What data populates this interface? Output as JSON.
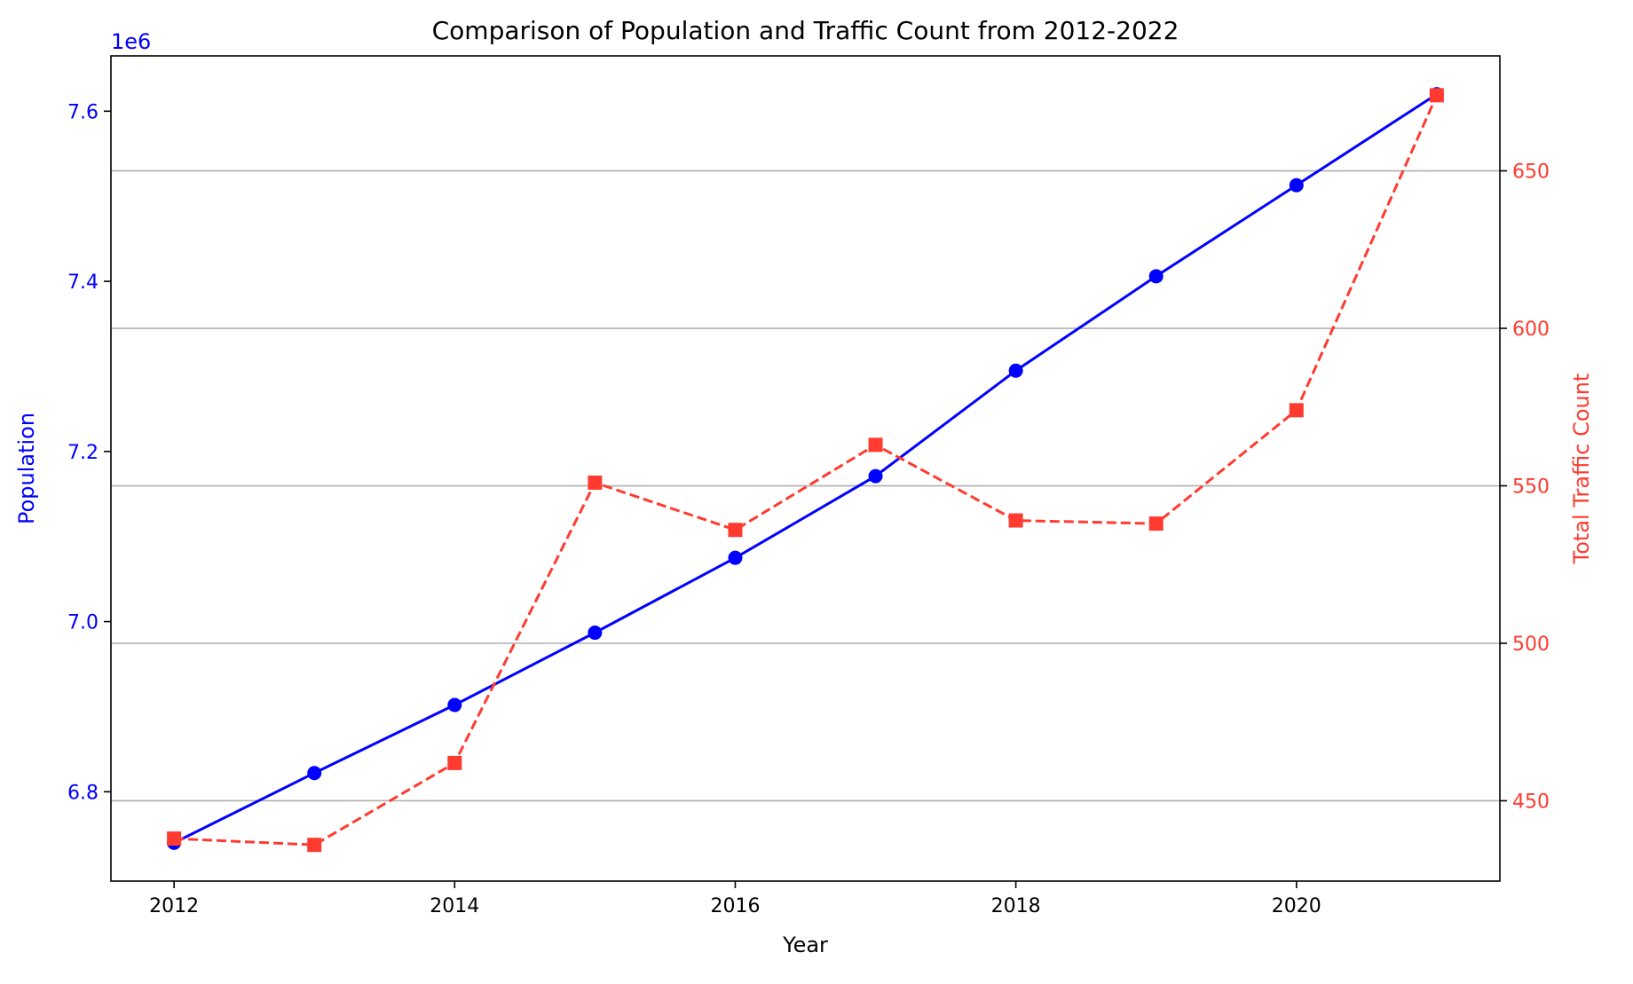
{
  "chart_data": {
    "type": "line",
    "title": "Comparison of Population and Traffic Count from 2012-2022",
    "xlabel": "Year",
    "x_ticks": [
      2012,
      2014,
      2016,
      2018,
      2020
    ],
    "xlim": [
      2011.55,
      2021.45
    ],
    "x": [
      2012,
      2013,
      2014,
      2015,
      2016,
      2017,
      2018,
      2019,
      2020,
      2021
    ],
    "grid": "horizontal lines at right-axis ticks",
    "series": [
      {
        "name": "Population",
        "axis": "left",
        "color": "#0000ff",
        "line_style": "solid",
        "marker": "circle",
        "values": [
          6740000,
          6822000,
          6902000,
          6987000,
          7075000,
          7171000,
          7295000,
          7406000,
          7513000,
          7620000
        ]
      },
      {
        "name": "Total Traffic Count",
        "axis": "right",
        "color": "#ff3b2f",
        "line_style": "dashed",
        "marker": "square",
        "values": [
          438,
          436,
          462,
          551,
          536,
          563,
          539,
          538,
          574,
          674
        ]
      }
    ],
    "y_left": {
      "label": "Population",
      "offset_text": "1e6",
      "scale": 1000000,
      "color": "#0000ff",
      "ylim": [
        6.695,
        7.665
      ],
      "ticks": [
        "6.8",
        "7.0",
        "7.2",
        "7.4",
        "7.6"
      ],
      "tick_values": [
        6.8,
        7.0,
        7.2,
        7.4,
        7.6
      ]
    },
    "y_right": {
      "label": "Total Traffic Count",
      "color": "#ff3b2f",
      "ylim": [
        424.5,
        686.5
      ],
      "ticks": [
        "450",
        "500",
        "550",
        "600",
        "650"
      ],
      "tick_values": [
        450,
        500,
        550,
        600,
        650
      ]
    }
  }
}
